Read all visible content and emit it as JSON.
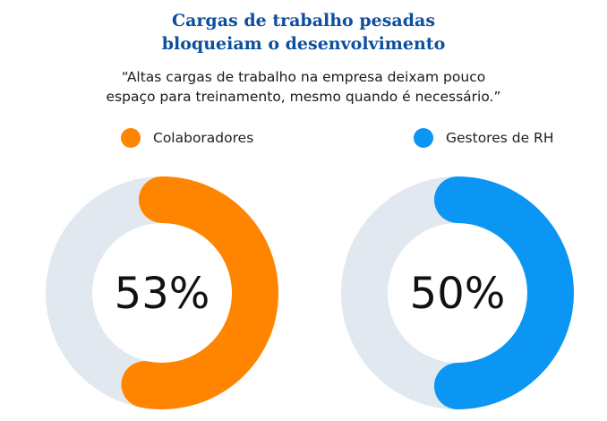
{
  "title_lines": [
    "Cargas de trabalho pesadas",
    "bloqueiam o desenvolvimento"
  ],
  "quote_lines": [
    "“Altas cargas de trabalho na empresa deixam pouco",
    "espaço para treinamento, mesmo quando é necessário.”"
  ],
  "colors": {
    "title": "#0b4f9e",
    "track": "#e2e8ef",
    "colaboradores": "#ff8400",
    "gestores": "#0a96f2"
  },
  "chart_data": [
    {
      "type": "pie",
      "variant": "donut",
      "name": "Colaboradores",
      "value": 53,
      "label": "53%",
      "color": "#ff8400"
    },
    {
      "type": "pie",
      "variant": "donut",
      "name": "Gestores de RH",
      "value": 50,
      "label": "50%",
      "color": "#0a96f2"
    }
  ]
}
